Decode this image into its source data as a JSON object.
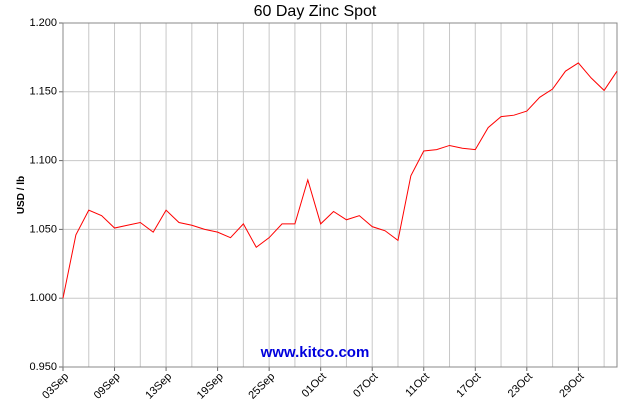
{
  "chart_data": {
    "type": "line",
    "title": "60 Day Zinc Spot",
    "y_label": "USD / lb",
    "watermark": "www.kitco.com",
    "categories": [
      "03Sep",
      null,
      null,
      null,
      "09Sep",
      null,
      null,
      null,
      "13Sep",
      null,
      null,
      null,
      "19Sep",
      null,
      null,
      null,
      "25Sep",
      null,
      null,
      null,
      "01Oct",
      null,
      null,
      null,
      "07Oct",
      null,
      null,
      null,
      "11Oct",
      null,
      null,
      null,
      "17Oct",
      null,
      null,
      null,
      "23Oct",
      null,
      null,
      null,
      "29Oct",
      null,
      null,
      null
    ],
    "series": [
      {
        "name": "Zinc",
        "color": "#ff0000",
        "values": [
          1.0,
          1.046,
          1.064,
          1.06,
          1.051,
          1.053,
          1.055,
          1.048,
          1.064,
          1.055,
          1.053,
          1.05,
          1.048,
          1.044,
          1.054,
          1.037,
          1.044,
          1.054,
          1.054,
          1.086,
          1.054,
          1.063,
          1.057,
          1.06,
          1.052,
          1.049,
          1.042,
          1.089,
          1.107,
          1.108,
          1.111,
          1.109,
          1.108,
          1.124,
          1.132,
          1.133,
          1.136,
          1.146,
          1.152,
          1.165,
          1.171,
          1.16,
          1.151,
          1.165
        ]
      }
    ],
    "ylim": [
      0.95,
      1.2
    ],
    "yticks": [
      {
        "value": 0.95,
        "label": "0.950"
      },
      {
        "value": 1.0,
        "label": "1.000"
      },
      {
        "value": 1.05,
        "label": "1.050"
      },
      {
        "value": 1.1,
        "label": "1.100"
      },
      {
        "value": 1.15,
        "label": "1.150"
      },
      {
        "value": 1.2,
        "label": "1.200"
      }
    ],
    "grid": true
  }
}
